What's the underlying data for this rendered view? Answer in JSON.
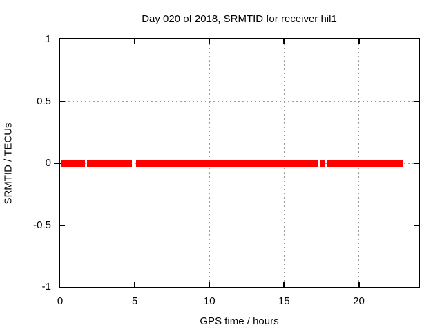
{
  "figure": {
    "kind": "gnuplot-style static plot"
  },
  "chart_data": {
    "type": "line",
    "title": "Day 020 of 2018, SRMTID for receiver hil1",
    "xlabel": "GPS time / hours",
    "ylabel": "SRMTID / TECUs",
    "xlim": [
      0,
      24
    ],
    "ylim": [
      -1,
      1
    ],
    "grid": true,
    "legend": "none",
    "x_ticks": [
      {
        "value": 0,
        "label": "0"
      },
      {
        "value": 5,
        "label": "5"
      },
      {
        "value": 10,
        "label": "10"
      },
      {
        "value": 15,
        "label": "15"
      },
      {
        "value": 20,
        "label": "20"
      }
    ],
    "y_ticks": [
      {
        "value": 1,
        "label": "1"
      },
      {
        "value": 0.5,
        "label": "0.5"
      },
      {
        "value": 0,
        "label": "0"
      },
      {
        "value": -0.5,
        "label": "-0.5"
      },
      {
        "value": -1,
        "label": "-1"
      }
    ],
    "series": [
      {
        "name": "SRMTID",
        "color": "#ff0000",
        "y_value": 0,
        "segments_hours": [
          [
            0.05,
            1.65
          ],
          [
            1.8,
            4.8
          ],
          [
            5.1,
            17.3
          ],
          [
            17.45,
            17.7
          ],
          [
            17.9,
            23.0
          ]
        ]
      }
    ],
    "colors": {
      "series": "#ff0000",
      "grid": "#9e9e9e",
      "border": "#000000",
      "text": "#000000",
      "background": "#ffffff"
    }
  }
}
